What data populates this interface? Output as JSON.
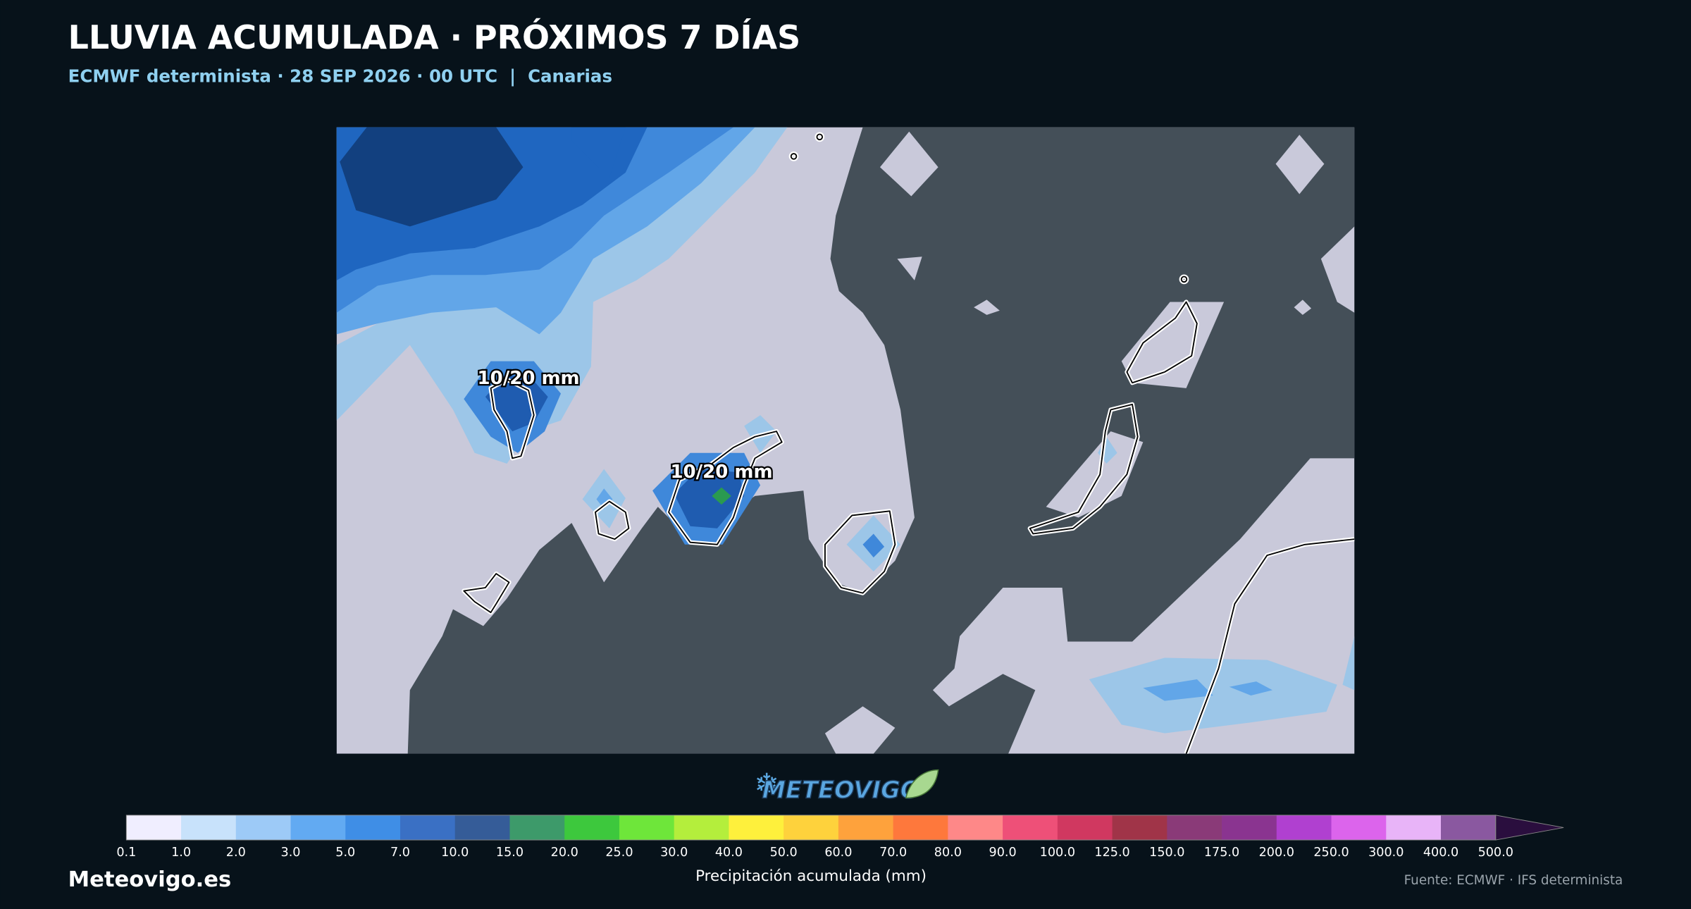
{
  "header": {
    "title": "LLUVIA ACUMULADA · PRÓXIMOS 7 DÍAS",
    "subtitle": "ECMWF determinista · 28 SEP 2026 · 00 UTC  |  Canarias"
  },
  "map": {
    "annotations": [
      "10/20 mm",
      "10/20 mm"
    ]
  },
  "logo": "METEOVIGO",
  "colorbar": {
    "label": "Precipitación acumulada (mm)",
    "ticks": [
      "0.1",
      "1.0",
      "2.0",
      "3.0",
      "5.0",
      "7.0",
      "10.0",
      "15.0",
      "20.0",
      "25.0",
      "30.0",
      "40.0",
      "50.0",
      "60.0",
      "70.0",
      "80.0",
      "90.0",
      "100.0",
      "125.0",
      "150.0",
      "175.0",
      "200.0",
      "250.0",
      "300.0",
      "400.0",
      "500.0"
    ],
    "colors": [
      "#f0eeff",
      "#c8e2fb",
      "#9dcaf7",
      "#62aaf2",
      "#3f8ee6",
      "#3a70c4",
      "#355c98",
      "#3d9a6a",
      "#3dc83d",
      "#6ee63a",
      "#b4ee3c",
      "#fef03c",
      "#fed23c",
      "#fea23c",
      "#fe783c",
      "#fe8888",
      "#ee5078",
      "#d03860",
      "#a03448",
      "#8a3a78",
      "#8a3490",
      "#b040d0",
      "#dc64ec",
      "#e8b4f8",
      "#8a58a0"
    ],
    "extend_color": "#2a0e3e"
  },
  "footer": {
    "site": "Meteovigo.es",
    "source": "Fuente: ECMWF · IFS determinista"
  }
}
